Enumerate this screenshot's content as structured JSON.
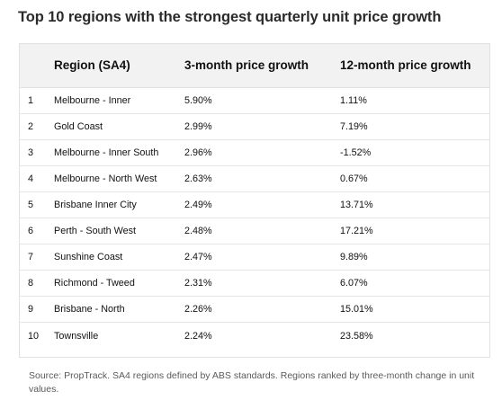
{
  "title": "Top 10 regions with the strongest quarterly unit price growth",
  "table": {
    "headers": [
      "",
      "Region (SA4)",
      "3-month price growth",
      "12-month price growth"
    ],
    "rows": [
      {
        "rank": "1",
        "region": "Melbourne - Inner",
        "three_month": "5.90%",
        "twelve_month": "1.11%"
      },
      {
        "rank": "2",
        "region": "Gold Coast",
        "three_month": "2.99%",
        "twelve_month": "7.19%"
      },
      {
        "rank": "3",
        "region": "Melbourne - Inner South",
        "three_month": "2.96%",
        "twelve_month": "-1.52%"
      },
      {
        "rank": "4",
        "region": "Melbourne - North West",
        "three_month": "2.63%",
        "twelve_month": "0.67%"
      },
      {
        "rank": "5",
        "region": "Brisbane Inner City",
        "three_month": "2.49%",
        "twelve_month": "13.71%"
      },
      {
        "rank": "6",
        "region": "Perth - South West",
        "three_month": "2.48%",
        "twelve_month": "17.21%"
      },
      {
        "rank": "7",
        "region": "Sunshine Coast",
        "three_month": "2.47%",
        "twelve_month": "9.89%"
      },
      {
        "rank": "8",
        "region": "Richmond - Tweed",
        "three_month": "2.31%",
        "twelve_month": "6.07%"
      },
      {
        "rank": "9",
        "region": "Brisbane - North",
        "three_month": "2.26%",
        "twelve_month": "15.01%"
      },
      {
        "rank": "10",
        "region": "Townsville",
        "three_month": "2.24%",
        "twelve_month": "23.58%"
      }
    ]
  },
  "source": "Source: PropTrack. SA4 regions defined by ABS standards. Regions ranked by three-month change in unit values."
}
